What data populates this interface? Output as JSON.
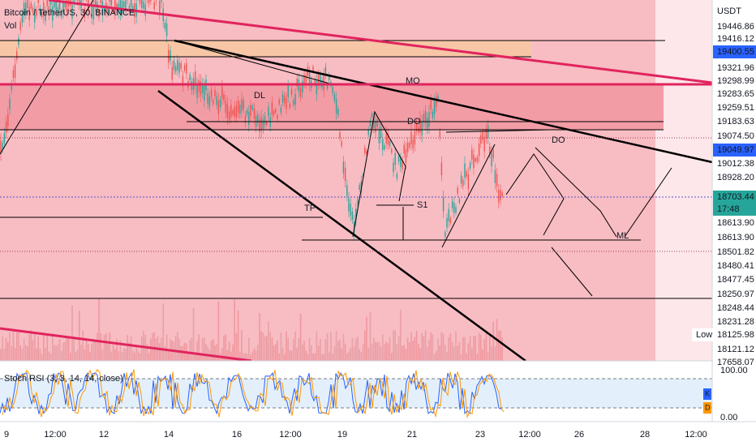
{
  "header": {
    "symbol": "Bitcoin / TetherUS, 30, BINANCE",
    "volume": "Vol"
  },
  "price_axis": {
    "currency": "USDT",
    "labels": [
      "19446.86",
      "19416.12",
      "19400.55",
      "19321.96",
      "19298.99",
      "19283.65",
      "19259.51",
      "19183.63",
      "19074.50",
      "19049.97",
      "19012.38",
      "18928.20",
      "18613.90",
      "18613.90",
      "18501.82",
      "18480.41",
      "18477.45",
      "18250.97",
      "18248.44",
      "18231.28",
      "18121.12",
      "17658.07"
    ],
    "last_price": "18703.44",
    "countdown": "17:48",
    "low_label": "Low",
    "low_value": "18125.98"
  },
  "drawing_labels": [
    "MO",
    "DL",
    "DO",
    "DO",
    "TP",
    "S1",
    "ML"
  ],
  "indicator": {
    "title": "Stoch RSI (3, 3, 14, 14, close)",
    "scale": [
      "100.00",
      "0.00"
    ],
    "legend": [
      "K",
      "D"
    ]
  },
  "time_axis": [
    "9",
    "12:00",
    "12",
    "14",
    "16",
    "12:00",
    "19",
    "21",
    "23",
    "12:00",
    "26",
    "28",
    "12:00"
  ]
}
